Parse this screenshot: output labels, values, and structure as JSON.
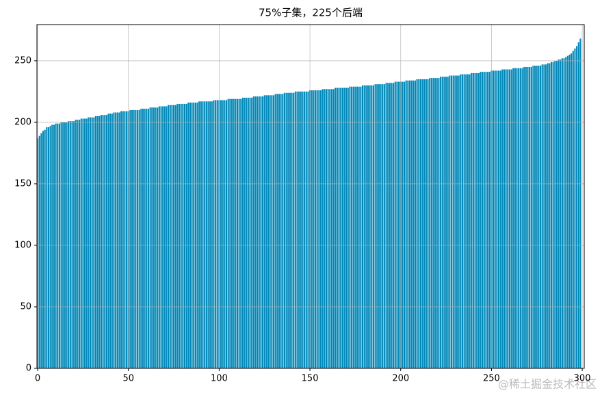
{
  "chart_data": {
    "type": "bar",
    "title": "75%子集，225个后端",
    "watermark": "@稀土掘金技术社区",
    "color": "#0088b8",
    "grid": true,
    "xlim": [
      -0.4,
      301.1
    ],
    "xticks": [
      0,
      50,
      100,
      150,
      200,
      250,
      300
    ],
    "ylim": [
      0,
      279.4
    ],
    "yticks": [
      0,
      50,
      100,
      150,
      200,
      250
    ],
    "x": [
      0,
      1,
      2,
      3,
      4,
      5,
      6,
      7,
      8,
      9,
      10,
      11,
      12,
      13,
      14,
      15,
      16,
      17,
      18,
      19,
      20,
      21,
      22,
      23,
      24,
      25,
      26,
      27,
      28,
      29,
      30,
      31,
      32,
      33,
      34,
      35,
      36,
      37,
      38,
      39,
      40,
      41,
      42,
      43,
      44,
      45,
      46,
      47,
      48,
      49,
      50,
      51,
      52,
      53,
      54,
      55,
      56,
      57,
      58,
      59,
      60,
      61,
      62,
      63,
      64,
      65,
      66,
      67,
      68,
      69,
      70,
      71,
      72,
      73,
      74,
      75,
      76,
      77,
      78,
      79,
      80,
      81,
      82,
      83,
      84,
      85,
      86,
      87,
      88,
      89,
      90,
      91,
      92,
      93,
      94,
      95,
      96,
      97,
      98,
      99,
      100,
      101,
      102,
      103,
      104,
      105,
      106,
      107,
      108,
      109,
      110,
      111,
      112,
      113,
      114,
      115,
      116,
      117,
      118,
      119,
      120,
      121,
      122,
      123,
      124,
      125,
      126,
      127,
      128,
      129,
      130,
      131,
      132,
      133,
      134,
      135,
      136,
      137,
      138,
      139,
      140,
      141,
      142,
      143,
      144,
      145,
      146,
      147,
      148,
      149,
      150,
      151,
      152,
      153,
      154,
      155,
      156,
      157,
      158,
      159,
      160,
      161,
      162,
      163,
      164,
      165,
      166,
      167,
      168,
      169,
      170,
      171,
      172,
      173,
      174,
      175,
      176,
      177,
      178,
      179,
      180,
      181,
      182,
      183,
      184,
      185,
      186,
      187,
      188,
      189,
      190,
      191,
      192,
      193,
      194,
      195,
      196,
      197,
      198,
      199,
      200,
      201,
      202,
      203,
      204,
      205,
      206,
      207,
      208,
      209,
      210,
      211,
      212,
      213,
      214,
      215,
      216,
      217,
      218,
      219,
      220,
      221,
      222,
      223,
      224,
      225,
      226,
      227,
      228,
      229,
      230,
      231,
      232,
      233,
      234,
      235,
      236,
      237,
      238,
      239,
      240,
      241,
      242,
      243,
      244,
      245,
      246,
      247,
      248,
      249,
      250,
      251,
      252,
      253,
      254,
      255,
      256,
      257,
      258,
      259,
      260,
      261,
      262,
      263,
      264,
      265,
      266,
      267,
      268,
      269,
      270,
      271,
      272,
      273,
      274,
      275,
      276,
      277,
      278,
      279,
      280,
      281,
      282,
      283,
      284,
      285,
      286,
      287,
      288,
      289,
      290,
      291,
      292,
      293,
      294,
      295,
      296,
      297,
      298,
      299
    ],
    "values": [
      187,
      189,
      191,
      193,
      194,
      196,
      196,
      197,
      198,
      198,
      199,
      199,
      199,
      200,
      200,
      200,
      200,
      201,
      201,
      201,
      201,
      202,
      202,
      202,
      203,
      203,
      203,
      203,
      204,
      204,
      204,
      204,
      205,
      205,
      205,
      206,
      206,
      206,
      206,
      207,
      207,
      207,
      208,
      208,
      208,
      208,
      209,
      209,
      209,
      209,
      209,
      210,
      210,
      210,
      210,
      210,
      210,
      211,
      211,
      211,
      211,
      211,
      212,
      212,
      212,
      212,
      212,
      213,
      213,
      213,
      213,
      213,
      214,
      214,
      214,
      214,
      214,
      215,
      215,
      215,
      215,
      215,
      215,
      216,
      216,
      216,
      216,
      216,
      216,
      217,
      217,
      217,
      217,
      217,
      217,
      217,
      217,
      218,
      218,
      218,
      218,
      218,
      218,
      218,
      218,
      219,
      219,
      219,
      219,
      219,
      219,
      219,
      219,
      220,
      220,
      220,
      220,
      220,
      220,
      221,
      221,
      221,
      221,
      221,
      221,
      222,
      222,
      222,
      222,
      222,
      222,
      223,
      223,
      223,
      223,
      223,
      224,
      224,
      224,
      224,
      224,
      224,
      225,
      225,
      225,
      225,
      225,
      225,
      225,
      225,
      226,
      226,
      226,
      226,
      226,
      226,
      226,
      227,
      227,
      227,
      227,
      227,
      227,
      227,
      228,
      228,
      228,
      228,
      228,
      228,
      228,
      228,
      229,
      229,
      229,
      229,
      229,
      229,
      229,
      230,
      230,
      230,
      230,
      230,
      230,
      230,
      231,
      231,
      231,
      231,
      231,
      231,
      232,
      232,
      232,
      232,
      232,
      233,
      233,
      233,
      233,
      233,
      233,
      234,
      234,
      234,
      234,
      234,
      234,
      235,
      235,
      235,
      235,
      235,
      235,
      235,
      236,
      236,
      236,
      236,
      236,
      236,
      237,
      237,
      237,
      237,
      237,
      238,
      238,
      238,
      238,
      238,
      238,
      239,
      239,
      239,
      239,
      239,
      239,
      240,
      240,
      240,
      240,
      240,
      241,
      241,
      241,
      241,
      241,
      241,
      242,
      242,
      242,
      242,
      242,
      242,
      243,
      243,
      243,
      243,
      243,
      243,
      244,
      244,
      244,
      244,
      244,
      244,
      245,
      245,
      245,
      245,
      245,
      246,
      246,
      246,
      246,
      246,
      247,
      247,
      247,
      248,
      248,
      249,
      249,
      250,
      250,
      251,
      251,
      252,
      252,
      253,
      254,
      255,
      256,
      258,
      260,
      262,
      265,
      268
    ]
  }
}
